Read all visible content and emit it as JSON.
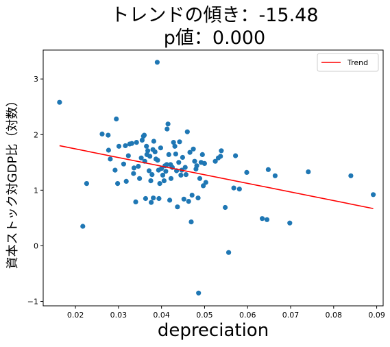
{
  "chart_data": {
    "type": "scatter",
    "title_line1": "トレンドの傾き：-15.48",
    "title_line2": "p値：0.000",
    "xlabel": "depreciation",
    "ylabel": "資本ストック対GDP比（対数）",
    "xlim": [
      0.0125,
      0.0915
    ],
    "ylim": [
      -1.08,
      3.52
    ],
    "xticks": [
      0.02,
      0.03,
      0.04,
      0.05,
      0.06,
      0.07,
      0.08,
      0.09
    ],
    "xtick_labels": [
      "0.02",
      "0.03",
      "0.04",
      "0.05",
      "0.06",
      "0.07",
      "0.08",
      "0.09"
    ],
    "yticks": [
      -1,
      0,
      1,
      2,
      3
    ],
    "ytick_labels": [
      "−1",
      "0",
      "1",
      "2",
      "3"
    ],
    "grid": false,
    "legend": {
      "position": "top-right",
      "entries": [
        "Trend"
      ]
    },
    "colors": {
      "points": "#1f77b4",
      "trend": "#ff0000"
    },
    "trend": {
      "x": [
        0.0163,
        0.0892
      ],
      "y": [
        1.8,
        0.67
      ]
    },
    "points": [
      [
        0.0163,
        2.58
      ],
      [
        0.0217,
        0.35
      ],
      [
        0.0226,
        1.12
      ],
      [
        0.0262,
        2.01
      ],
      [
        0.0276,
        1.99
      ],
      [
        0.0277,
        1.72
      ],
      [
        0.0281,
        1.56
      ],
      [
        0.0292,
        1.36
      ],
      [
        0.0295,
        2.28
      ],
      [
        0.0298,
        1.12
      ],
      [
        0.0301,
        1.79
      ],
      [
        0.0312,
        1.47
      ],
      [
        0.0316,
        1.8
      ],
      [
        0.0318,
        1.16
      ],
      [
        0.0323,
        1.62
      ],
      [
        0.0326,
        1.83
      ],
      [
        0.0331,
        1.84
      ],
      [
        0.0335,
        1.3
      ],
      [
        0.0336,
        1.4
      ],
      [
        0.034,
        0.79
      ],
      [
        0.0342,
        1.86
      ],
      [
        0.0346,
        1.43
      ],
      [
        0.0349,
        1.21
      ],
      [
        0.0353,
        1.58
      ],
      [
        0.0355,
        1.9
      ],
      [
        0.0358,
        1.97
      ],
      [
        0.036,
        1.99
      ],
      [
        0.0361,
        1.52
      ],
      [
        0.0363,
        0.85
      ],
      [
        0.0365,
        1.79
      ],
      [
        0.0366,
        1.64
      ],
      [
        0.0368,
        1.71
      ],
      [
        0.0371,
        1.35
      ],
      [
        0.0373,
        1.61
      ],
      [
        0.0375,
        1.17
      ],
      [
        0.0376,
        0.78
      ],
      [
        0.0378,
        1.28
      ],
      [
        0.038,
        1.73
      ],
      [
        0.0381,
        0.86
      ],
      [
        0.0382,
        1.88
      ],
      [
        0.0385,
        1.69
      ],
      [
        0.0387,
        1.56
      ],
      [
        0.039,
        3.3
      ],
      [
        0.0391,
        1.54
      ],
      [
        0.0393,
        1.36
      ],
      [
        0.0394,
        0.85
      ],
      [
        0.0396,
        1.12
      ],
      [
        0.0398,
        1.76
      ],
      [
        0.04,
        1.39
      ],
      [
        0.0403,
        1.27
      ],
      [
        0.0406,
        1.17
      ],
      [
        0.0408,
        1.44
      ],
      [
        0.041,
        1.34
      ],
      [
        0.0412,
        1.46
      ],
      [
        0.0413,
        2.1
      ],
      [
        0.0415,
        2.19
      ],
      [
        0.0417,
        1.64
      ],
      [
        0.0419,
        0.82
      ],
      [
        0.0421,
        1.46
      ],
      [
        0.0422,
        1.21
      ],
      [
        0.0425,
        1.41
      ],
      [
        0.0428,
        1.86
      ],
      [
        0.0431,
        1.79
      ],
      [
        0.0433,
        1.65
      ],
      [
        0.0435,
        1.35
      ],
      [
        0.0437,
        0.7
      ],
      [
        0.044,
        1.5
      ],
      [
        0.0442,
        1.87
      ],
      [
        0.0445,
        1.27
      ],
      [
        0.0447,
        1.36
      ],
      [
        0.0449,
        1.59
      ],
      [
        0.0452,
        0.84
      ],
      [
        0.0455,
        1.41
      ],
      [
        0.0457,
        1.28
      ],
      [
        0.046,
        2.05
      ],
      [
        0.0463,
        0.8
      ],
      [
        0.0466,
        1.68
      ],
      [
        0.0469,
        0.43
      ],
      [
        0.0471,
        0.91
      ],
      [
        0.0474,
        1.74
      ],
      [
        0.0477,
        1.52
      ],
      [
        0.048,
        1.38
      ],
      [
        0.0482,
        1.44
      ],
      [
        0.0485,
        0.86
      ],
      [
        0.0486,
        -0.85
      ],
      [
        0.0489,
        1.21
      ],
      [
        0.0492,
        1.5
      ],
      [
        0.0495,
        1.64
      ],
      [
        0.0497,
        1.08
      ],
      [
        0.05,
        1.48
      ],
      [
        0.0503,
        1.14
      ],
      [
        0.0525,
        1.52
      ],
      [
        0.0532,
        1.58
      ],
      [
        0.0537,
        1.61
      ],
      [
        0.0539,
        1.71
      ],
      [
        0.0548,
        0.69
      ],
      [
        0.0556,
        -0.12
      ],
      [
        0.0568,
        1.04
      ],
      [
        0.0572,
        1.62
      ],
      [
        0.0581,
        1.02
      ],
      [
        0.0598,
        1.32
      ],
      [
        0.0634,
        0.49
      ],
      [
        0.0645,
        0.47
      ],
      [
        0.0648,
        1.37
      ],
      [
        0.0664,
        1.26
      ],
      [
        0.0698,
        0.41
      ],
      [
        0.0741,
        1.33
      ],
      [
        0.084,
        1.26
      ],
      [
        0.0892,
        0.92
      ]
    ]
  }
}
